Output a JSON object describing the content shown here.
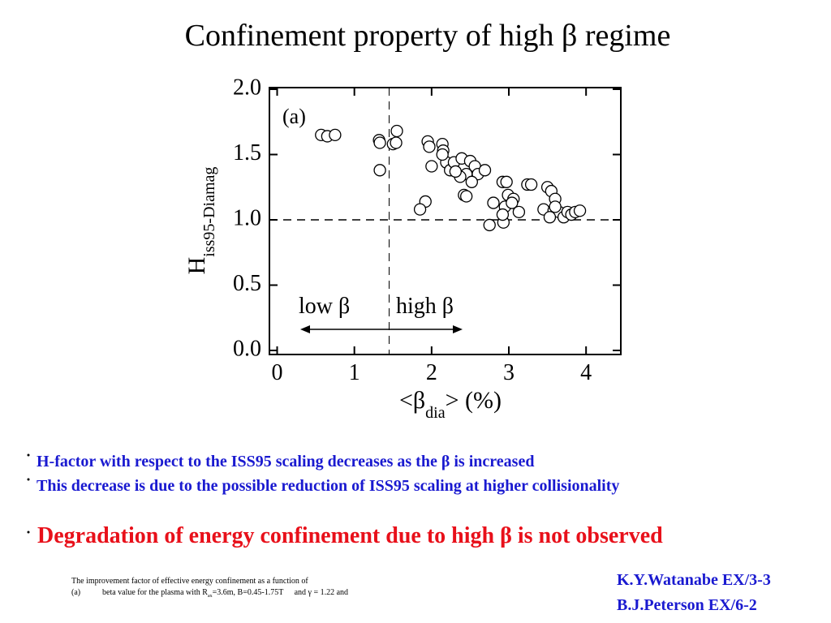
{
  "title": "Confinement property of high β regime",
  "chart_data": {
    "type": "scatter",
    "xlabel": {
      "main": "<β",
      "sub": "dia",
      "tail": "> (%)"
    },
    "ylabel": {
      "main": "H",
      "sub": "iss95-Diamag"
    },
    "annotations": {
      "panel": "(a)",
      "low": "low β",
      "high": "high β"
    },
    "xlim": [
      -0.1,
      4.45
    ],
    "ylim": [
      0,
      2
    ],
    "xticks": [
      0,
      1,
      2,
      3,
      4
    ],
    "yticks": [
      {
        "value": 0,
        "label": "0.0"
      },
      0.5,
      {
        "value": 1,
        "label": "1.0"
      },
      1.5,
      {
        "value": 2,
        "label": "2.0"
      }
    ],
    "hline": 1.0,
    "vline": 1.45,
    "marker_color": "#000000",
    "series": [
      {
        "x": [
          0.57,
          0.65,
          0.75,
          1.32,
          1.33,
          1.55,
          1.5,
          1.54,
          1.33,
          1.95,
          1.97,
          2.14,
          2.15,
          2.0,
          2.19,
          2.24,
          2.29,
          2.39,
          2.45,
          2.37,
          2.5,
          2.56,
          2.6,
          2.69,
          2.52,
          2.42,
          2.45,
          1.92,
          1.85,
          2.14,
          2.31,
          2.92,
          2.97,
          2.8,
          2.75,
          2.93,
          2.99,
          3.06,
          2.95,
          3.13,
          2.92,
          3.24,
          3.29,
          3.04,
          3.5,
          3.55,
          3.6,
          3.45,
          3.58,
          3.65,
          3.71,
          3.53,
          3.76,
          3.81,
          3.86,
          3.92,
          3.6
        ],
        "values": [
          1.65,
          1.64,
          1.65,
          1.61,
          1.38,
          1.68,
          1.58,
          1.59,
          1.59,
          1.6,
          1.56,
          1.58,
          1.53,
          1.41,
          1.44,
          1.38,
          1.44,
          1.47,
          1.35,
          1.33,
          1.45,
          1.41,
          1.35,
          1.38,
          1.29,
          1.19,
          1.18,
          1.14,
          1.08,
          1.5,
          1.37,
          1.29,
          1.29,
          1.13,
          0.96,
          0.98,
          1.19,
          1.16,
          1.1,
          1.06,
          1.04,
          1.27,
          1.27,
          1.13,
          1.25,
          1.22,
          1.16,
          1.08,
          1.07,
          1.06,
          1.02,
          1.02,
          1.06,
          1.04,
          1.06,
          1.07,
          1.1
        ]
      }
    ]
  },
  "bullets": [
    "H-factor with respect to the ISS95 scaling decreases as the β is increased",
    "This decrease is due to the possible reduction of ISS95 scaling at higher collisionality"
  ],
  "highlight": "Degradation of energy confinement due to high β is not observed",
  "caption": {
    "line1": "The improvement factor of effective energy confinement as a function of",
    "label": "(a)",
    "line2a": "beta value for the plasma with R",
    "line2sub": "ax",
    "line2b": "=3.6m, B=0.45-1.75T",
    "line2c": "and γ = 1.22 and"
  },
  "credits": [
    "K.Y.Watanabe EX/3-3",
    "B.J.Peterson EX/6-2"
  ]
}
